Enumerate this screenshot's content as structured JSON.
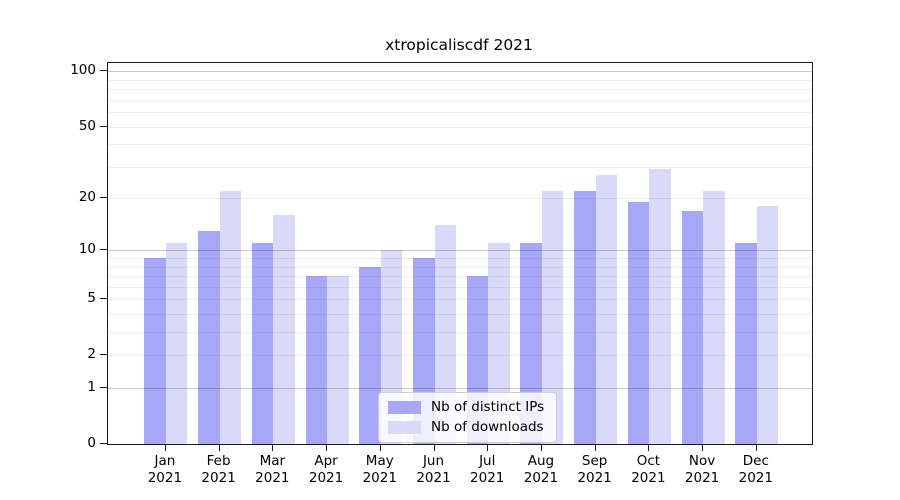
{
  "title": "xtropicaliscdf 2021",
  "chart_data": {
    "type": "bar",
    "title": "xtropicaliscdf 2021",
    "year_label": "2021",
    "categories": [
      "Jan",
      "Feb",
      "Mar",
      "Apr",
      "May",
      "Jun",
      "Jul",
      "Aug",
      "Sep",
      "Oct",
      "Nov",
      "Dec"
    ],
    "series": [
      {
        "name": "Nb of distinct IPs",
        "color": "#a7a7f8",
        "values": [
          9,
          13,
          11,
          7,
          8,
          9,
          7,
          11,
          22,
          19,
          17,
          11
        ]
      },
      {
        "name": "Nb of downloads",
        "color": "#d9d9f8",
        "values": [
          11,
          22,
          16,
          7,
          10,
          14,
          11,
          22,
          27,
          29,
          22,
          18
        ]
      }
    ],
    "xlabel": "",
    "ylabel": "",
    "y_axis": {
      "scale": "log1p",
      "tick_labels": [
        100,
        50,
        20,
        10,
        5,
        2,
        1,
        0
      ],
      "major_gridlines": [
        1,
        10,
        100
      ],
      "minor_gridlines": [
        2,
        3,
        4,
        5,
        6,
        7,
        8,
        9,
        20,
        30,
        40,
        50,
        60,
        70,
        80,
        90
      ],
      "ylim": [
        0,
        112
      ]
    },
    "grid": true,
    "legend_position": "lower center"
  },
  "legend": {
    "items": [
      "Nb of distinct IPs",
      "Nb of downloads"
    ]
  }
}
